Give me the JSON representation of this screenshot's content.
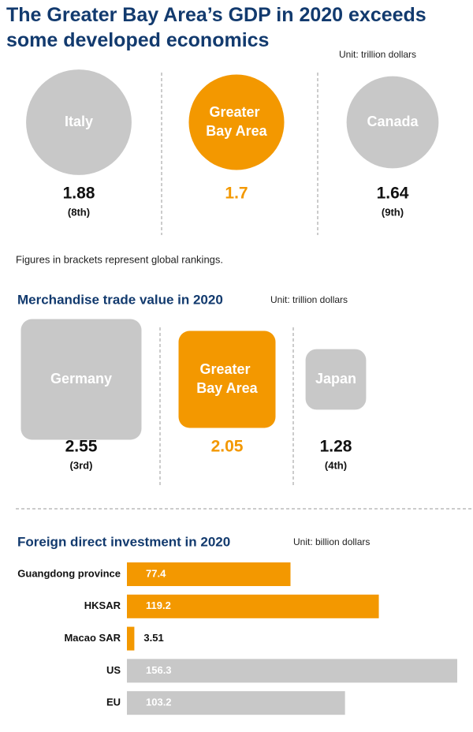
{
  "chart_data": [
    {
      "type": "circle-size",
      "title": "The Greater Bay Area’s GDP in 2020 exceeds some developed economics",
      "unit": "Unit: trillion dollars",
      "categories": [
        "Italy",
        "Greater Bay Area",
        "Canada"
      ],
      "values": [
        1.88,
        1.7,
        1.64
      ],
      "rankings": [
        "(8th)",
        null,
        "(9th)"
      ],
      "colors": [
        "#c8c8c8",
        "#f39800",
        "#c8c8c8"
      ],
      "note": "Figures in brackets represent global rankings."
    },
    {
      "type": "square-size",
      "title": "Merchandise trade value in 2020",
      "unit": "Unit: trillion dollars",
      "categories": [
        "Germany",
        "Greater Bay Area",
        "Japan"
      ],
      "values": [
        2.55,
        2.05,
        1.28
      ],
      "rankings": [
        "(3rd)",
        null,
        "(4th)"
      ],
      "colors": [
        "#c8c8c8",
        "#f39800",
        "#c8c8c8"
      ]
    },
    {
      "type": "hbar",
      "title": "Foreign direct investment in 2020",
      "unit": "Unit: billion dollars",
      "categories": [
        "Guangdong province",
        "HKSAR",
        "Macao SAR",
        "US",
        "EU"
      ],
      "values": [
        77.4,
        119.2,
        3.51,
        156.3,
        103.2
      ],
      "colors": [
        "#f39800",
        "#f39800",
        "#f39800",
        "#c8c8c8",
        "#c8c8c8"
      ],
      "xlim": [
        0,
        156.3
      ]
    }
  ]
}
